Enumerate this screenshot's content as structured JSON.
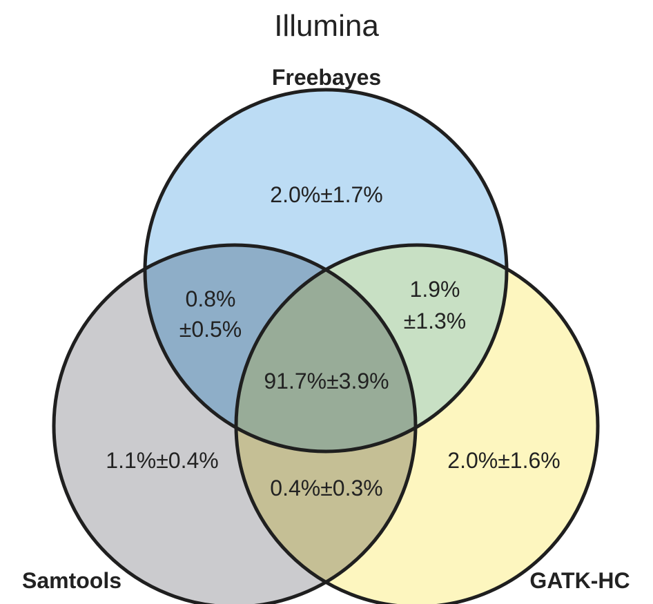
{
  "title": "Illumina",
  "sets": {
    "freebayes": {
      "label": "Freebayes",
      "color": "#bcdcf4"
    },
    "samtools": {
      "label": "Samtools",
      "color": "#cbcbce"
    },
    "gatk": {
      "label": "GATK-HC",
      "color": "#fdf6bf"
    }
  },
  "regions": {
    "freebayes_only": "2.0%±1.7%",
    "freebayes_samtools": [
      "0.8%",
      "±0.5%"
    ],
    "freebayes_gatk": [
      "1.9%",
      "±1.3%"
    ],
    "all_three": "91.7%±3.9%",
    "samtools_only": "1.1%±0.4%",
    "samtools_gatk": "0.4%±0.3%",
    "gatk_only": "2.0%±1.6%"
  },
  "overlap_colors": {
    "freebayes_samtools": "#8eaec8",
    "freebayes_gatk": "#c8e0c4",
    "samtools_gatk": "#c5bf95",
    "all_three": "#98ac98"
  }
}
